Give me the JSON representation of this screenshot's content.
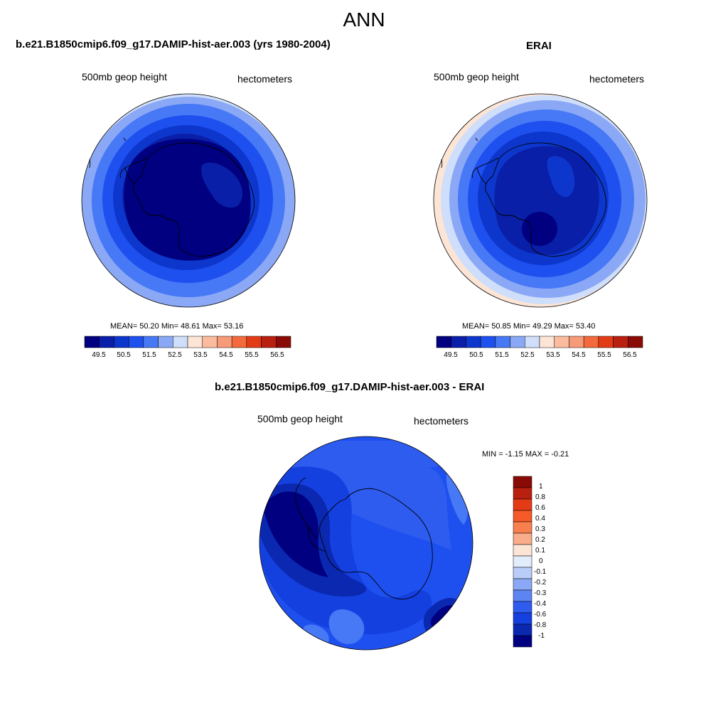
{
  "figure_title": "ANN",
  "panels": [
    {
      "title": "b.e21.B1850cmip6.f09_g17.DAMIP-hist-aer.003 (yrs 1980-2004)",
      "left_string": "500mb geop height",
      "right_string": "hectometers",
      "stats_text": "MEAN=  50.20  Min=  48.61  Max=  53.16",
      "colorbar_labels": [
        "49.5",
        "50.5",
        "51.5",
        "52.5",
        "53.5",
        "54.5",
        "55.5",
        "56.5"
      ]
    },
    {
      "title": "ERAI",
      "left_string": "500mb geop height",
      "right_string": "hectometers",
      "stats_text": "MEAN=  50.85  Min=  49.29  Max=  53.40",
      "colorbar_labels": [
        "49.5",
        "50.5",
        "51.5",
        "52.5",
        "53.5",
        "54.5",
        "55.5",
        "56.5"
      ]
    },
    {
      "title": "b.e21.B1850cmip6.f09_g17.DAMIP-hist-aer.003 - ERAI",
      "left_string": "500mb geop height",
      "right_string": "hectometers",
      "stats_text": "MIN =  -1.15 MAX =  -0.21",
      "colorbar_labels": [
        "1",
        "0.8",
        "0.6",
        "0.4",
        "0.3",
        "0.2",
        "0.1",
        "0",
        "-0.1",
        "-0.2",
        "-0.3",
        "-0.4",
        "-0.6",
        "-0.8",
        "-1"
      ]
    }
  ],
  "colors": {
    "abs_palette": [
      "#000080",
      "#0a1fa8",
      "#0d37cc",
      "#1e50f0",
      "#4778f5",
      "#8aa8f5",
      "#cfdefa",
      "#fde5d6",
      "#fbbb9e",
      "#f79a78",
      "#f36a3d",
      "#e43b17",
      "#b9200f",
      "#8a0a05"
    ],
    "diff_palette": [
      "#8a0a05",
      "#b9200f",
      "#e43b17",
      "#f55a28",
      "#f7804e",
      "#f9ad8a",
      "#fde5d6",
      "#e3ecfb",
      "#b9cdf8",
      "#8aa8f5",
      "#5c85f3",
      "#2d5cef",
      "#1540e0",
      "#0a28b0",
      "#000080"
    ],
    "coastline": "#000000"
  }
}
